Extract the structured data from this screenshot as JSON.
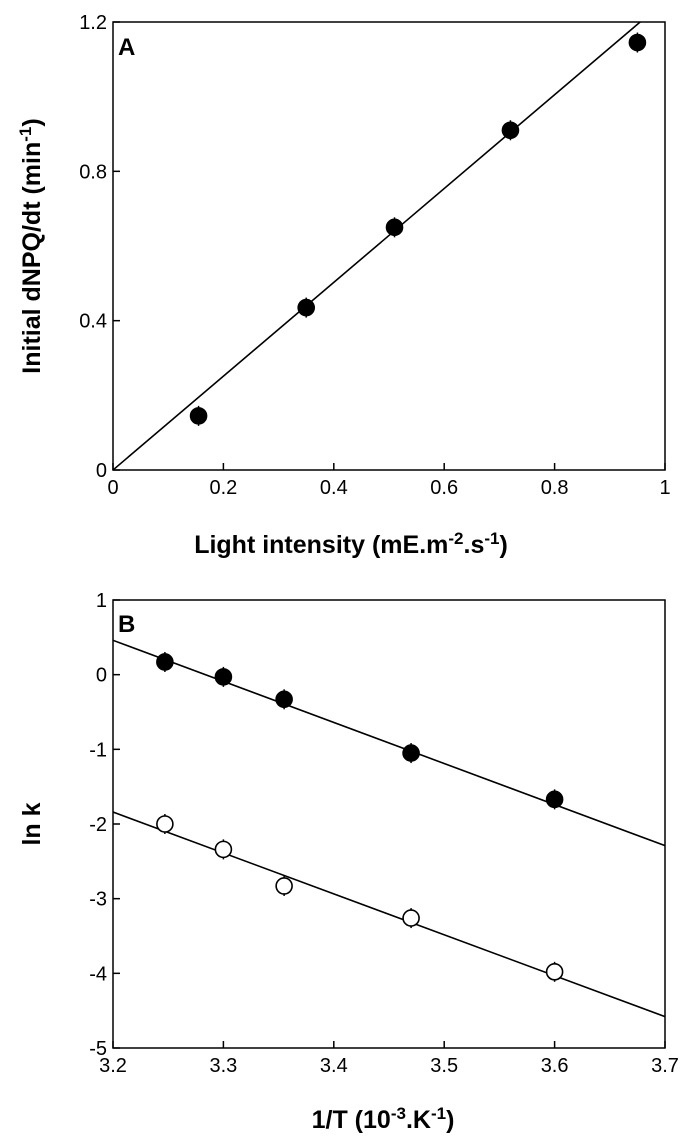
{
  "chart_data": [
    {
      "type": "scatter",
      "panel_label": "A",
      "xlabel": "Light intensity (mE.m-2.s-1)",
      "xlabel_parts": {
        "main": "Light intensity (mE.m",
        "sup1": "-2",
        "mid": ".s",
        "sup2": "-1",
        "end": ")"
      },
      "ylabel": "Initial dNPQ/dt (min-1)",
      "ylabel_parts": {
        "main": "Initial dNPQ/dt (min",
        "sup": "-1",
        "end": ")"
      },
      "xlim": [
        0,
        1
      ],
      "ylim": [
        0,
        1.2
      ],
      "xticks": [
        0,
        0.2,
        0.4,
        0.6,
        0.8,
        1
      ],
      "xtick_labels": [
        "0",
        "0.2",
        "0.4",
        "0.6",
        "0.8",
        "1"
      ],
      "yticks": [
        0,
        0.4,
        0.8,
        1.2
      ],
      "ytick_labels": [
        "0",
        "0.4",
        "0.8",
        "1.2"
      ],
      "series": [
        {
          "marker": "filled-circle",
          "x": [
            0.155,
            0.35,
            0.51,
            0.72,
            0.95
          ],
          "y": [
            0.145,
            0.435,
            0.65,
            0.91,
            1.145
          ]
        }
      ],
      "fit_lines": [
        {
          "x": [
            0,
            0.955
          ],
          "y": [
            0,
            1.2
          ]
        }
      ],
      "grid": false
    },
    {
      "type": "scatter",
      "panel_label": "B",
      "xlabel": "1/T (10-3.K-1)",
      "xlabel_parts": {
        "main": "1/T (10",
        "sup1": "-3",
        "mid": ".K",
        "sup2": "-1",
        "end": ")"
      },
      "ylabel": "ln k",
      "xlim": [
        3.2,
        3.7
      ],
      "ylim": [
        -5,
        1
      ],
      "xticks": [
        3.2,
        3.3,
        3.4,
        3.5,
        3.6,
        3.7
      ],
      "xtick_labels": [
        "3.2",
        "3.3",
        "3.4",
        "3.5",
        "3.6",
        "3.7"
      ],
      "yticks": [
        -5,
        -4,
        -3,
        -2,
        -1,
        0,
        1
      ],
      "ytick_labels": [
        "-5",
        "-4",
        "-3",
        "-2",
        "-1",
        "0",
        "1"
      ],
      "series": [
        {
          "marker": "filled-circle",
          "x": [
            3.247,
            3.3,
            3.355,
            3.47,
            3.6
          ],
          "y": [
            0.17,
            -0.03,
            -0.33,
            -1.05,
            -1.67
          ]
        },
        {
          "marker": "open-circle",
          "x": [
            3.247,
            3.3,
            3.355,
            3.47,
            3.6
          ],
          "y": [
            -2.0,
            -2.34,
            -2.83,
            -3.26,
            -3.98
          ]
        }
      ],
      "fit_lines": [
        {
          "x": [
            3.2,
            3.7
          ],
          "y": [
            0.46,
            -2.29
          ]
        },
        {
          "x": [
            3.2,
            3.7
          ],
          "y": [
            -1.84,
            -4.58
          ]
        }
      ],
      "grid": false
    }
  ]
}
